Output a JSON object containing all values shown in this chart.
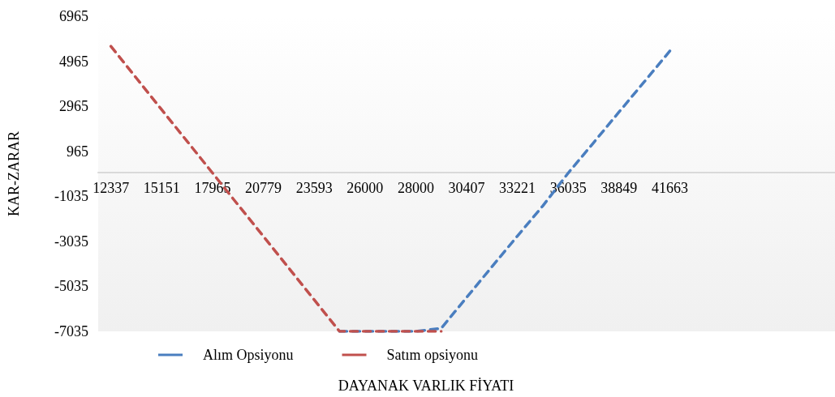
{
  "chart_data": {
    "type": "line",
    "xlabel": "DAYANAK VARLIK FİYATI",
    "ylabel": "KAR-ZARAR",
    "categories": [
      "12337",
      null,
      "15151",
      null,
      "17965",
      null,
      "20779",
      null,
      "23593",
      null,
      "26000",
      null,
      "28000",
      null,
      "30407",
      null,
      "33221",
      null,
      "36035",
      null,
      "38849",
      null,
      "41663",
      null,
      null,
      null,
      null,
      null,
      null
    ],
    "series": [
      {
        "name": "Alım Opsiyonu",
        "color": "#4a7ebf",
        "line_style": "dashed",
        "values": [
          null,
          null,
          null,
          null,
          null,
          null,
          null,
          null,
          null,
          -7035,
          -7035,
          -7035,
          -7035,
          -6900,
          -5530,
          -4160,
          -2800,
          -1460,
          0,
          1350,
          2710,
          4060,
          5420,
          null,
          null,
          null,
          null,
          null,
          null
        ]
      },
      {
        "name": "Satım opsiyonu",
        "color": "#c0504d",
        "line_style": "dashed",
        "values": [
          5630,
          4220,
          2810,
          1410,
          0,
          -1410,
          -2810,
          -4220,
          -5630,
          -7035,
          -7035,
          -7035,
          -7035,
          -7035,
          null,
          null,
          null,
          null,
          null,
          null,
          null,
          null,
          null,
          null,
          null,
          null,
          null,
          null,
          null
        ]
      }
    ],
    "ylim": [
      -7035,
      6965
    ],
    "yticks": [
      -7035,
      -5035,
      -3035,
      -1035,
      965,
      2965,
      4965,
      6965
    ],
    "grid": false,
    "legend": "bottom",
    "marker": "none"
  }
}
